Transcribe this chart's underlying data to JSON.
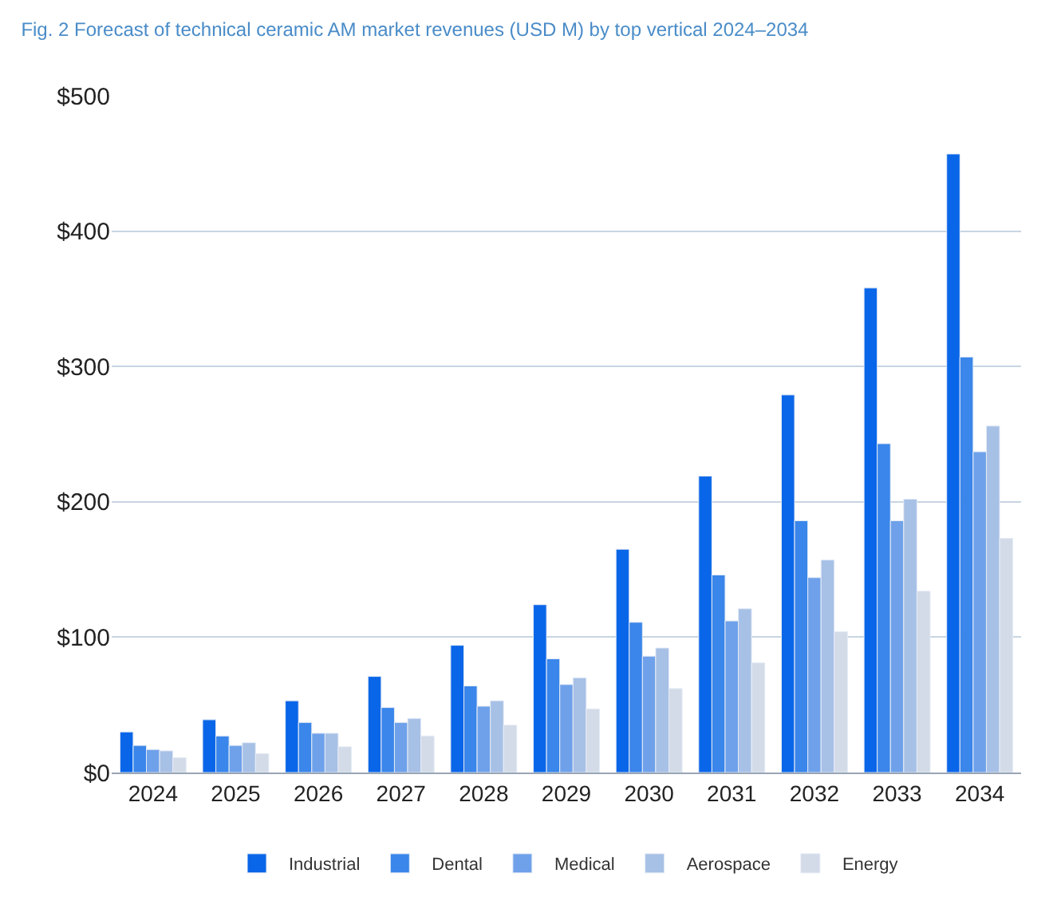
{
  "chart_data": {
    "type": "bar",
    "title": "Fig. 2 Forecast of technical ceramic AM market revenues (USD M) by top vertical 2024–2034",
    "categories": [
      "2024",
      "2025",
      "2026",
      "2027",
      "2028",
      "2029",
      "2030",
      "2031",
      "2032",
      "2033",
      "2034"
    ],
    "series": [
      {
        "name": "Industrial",
        "color": "#0a66e8",
        "values": [
          30,
          39,
          53,
          71,
          94,
          124,
          165,
          219,
          279,
          358,
          457
        ]
      },
      {
        "name": "Dental",
        "color": "#3a86ea",
        "values": [
          20,
          27,
          37,
          48,
          64,
          84,
          111,
          146,
          186,
          243,
          307
        ]
      },
      {
        "name": "Medical",
        "color": "#6fa1ea",
        "values": [
          17,
          20,
          29,
          37,
          49,
          65,
          86,
          112,
          144,
          186,
          237
        ]
      },
      {
        "name": "Aerospace",
        "color": "#a7c0e6",
        "values": [
          16,
          22,
          29,
          40,
          53,
          70,
          92,
          121,
          157,
          202,
          256
        ]
      },
      {
        "name": "Energy",
        "color": "#d3dbe8",
        "values": [
          11,
          14,
          19,
          27,
          35,
          47,
          62,
          81,
          104,
          134,
          173
        ]
      }
    ],
    "ylim": [
      0,
      500
    ],
    "yticks": [
      {
        "value": 0,
        "label": "$0"
      },
      {
        "value": 100,
        "label": "$100"
      },
      {
        "value": 200,
        "label": "$200"
      },
      {
        "value": 300,
        "label": "$300"
      },
      {
        "value": 400,
        "label": "$400"
      },
      {
        "value": 500,
        "label": "$500"
      }
    ],
    "grid": "y",
    "legend": "bottom"
  }
}
